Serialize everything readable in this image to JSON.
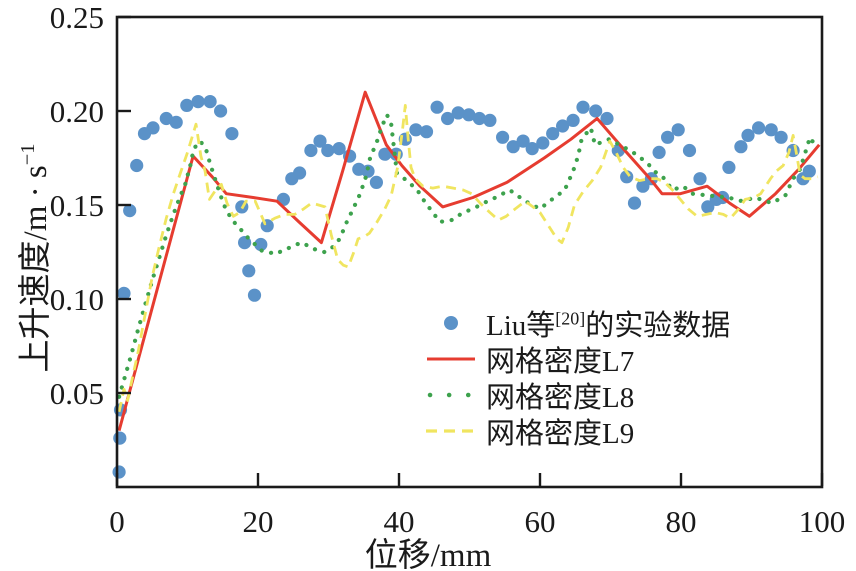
{
  "figure": {
    "xlabel": "位移/mm",
    "ylabel_base": "上升速度/m · s",
    "ylabel_sup": "−1"
  },
  "legend": {
    "item1": {
      "pre": "Liu等",
      "sup": "[20]",
      "post": "的实验数据"
    },
    "item2": "网格密度L7",
    "item3": "网格密度L8",
    "item4": "网格密度L9"
  },
  "colors": {
    "experimental": "#5b92c8",
    "l7": "#e63c30",
    "l8": "#3da24d",
    "l9": "#f0e560",
    "axis": "#1a1a1a"
  },
  "chart_data": {
    "type": "line",
    "title": "",
    "xlabel": "位移/mm",
    "ylabel": "上升速度/m·s⁻¹",
    "xlim": [
      0,
      100
    ],
    "ylim": [
      0,
      0.25
    ],
    "x_ticks": [
      0,
      20,
      40,
      60,
      80,
      100
    ],
    "y_ticks": [
      {
        "value": 0.05,
        "label": "0.05"
      },
      {
        "value": 0.1,
        "label": "0.10"
      },
      {
        "value": 0.15,
        "label": "0.15"
      },
      {
        "value": 0.2,
        "label": "0.20"
      },
      {
        "value": 0.25,
        "label": "0.25"
      }
    ],
    "grid": false,
    "legend_position": "inside-lower-right",
    "series": [
      {
        "name": "Liu等[20]的实验数据",
        "kind": "scatter",
        "color": "#5b92c8",
        "marker_radius": 6.6,
        "points": [
          [
            0.3,
            0.008
          ],
          [
            0.4,
            0.026
          ],
          [
            0.5,
            0.041
          ],
          [
            1.0,
            0.103
          ],
          [
            1.8,
            0.147
          ],
          [
            2.8,
            0.171
          ],
          [
            3.9,
            0.188
          ],
          [
            5.1,
            0.191
          ],
          [
            7.0,
            0.196
          ],
          [
            8.4,
            0.194
          ],
          [
            9.9,
            0.203
          ],
          [
            11.5,
            0.205
          ],
          [
            13.2,
            0.205
          ],
          [
            14.7,
            0.2
          ],
          [
            16.3,
            0.188
          ],
          [
            17.7,
            0.149
          ],
          [
            18.1,
            0.13
          ],
          [
            18.7,
            0.115
          ],
          [
            19.5,
            0.102
          ],
          [
            20.4,
            0.129
          ],
          [
            21.3,
            0.139
          ],
          [
            23.6,
            0.153
          ],
          [
            24.8,
            0.164
          ],
          [
            25.9,
            0.167
          ],
          [
            27.5,
            0.179
          ],
          [
            28.8,
            0.184
          ],
          [
            29.9,
            0.179
          ],
          [
            31.5,
            0.18
          ],
          [
            33.0,
            0.176
          ],
          [
            34.3,
            0.169
          ],
          [
            35.6,
            0.168
          ],
          [
            36.8,
            0.162
          ],
          [
            38.0,
            0.177
          ],
          [
            39.6,
            0.177
          ],
          [
            40.9,
            0.185
          ],
          [
            42.4,
            0.19
          ],
          [
            43.9,
            0.189
          ],
          [
            45.4,
            0.202
          ],
          [
            46.9,
            0.196
          ],
          [
            48.4,
            0.199
          ],
          [
            49.9,
            0.198
          ],
          [
            51.4,
            0.196
          ],
          [
            52.9,
            0.195
          ],
          [
            54.7,
            0.186
          ],
          [
            56.2,
            0.181
          ],
          [
            57.6,
            0.184
          ],
          [
            58.9,
            0.18
          ],
          [
            60.4,
            0.183
          ],
          [
            61.8,
            0.188
          ],
          [
            63.2,
            0.192
          ],
          [
            64.7,
            0.195
          ],
          [
            66.1,
            0.202
          ],
          [
            67.9,
            0.2
          ],
          [
            69.5,
            0.196
          ],
          [
            71.1,
            0.179
          ],
          [
            72.3,
            0.165
          ],
          [
            73.4,
            0.151
          ],
          [
            74.6,
            0.16
          ],
          [
            75.8,
            0.164
          ],
          [
            76.9,
            0.178
          ],
          [
            78.1,
            0.186
          ],
          [
            79.6,
            0.19
          ],
          [
            81.2,
            0.179
          ],
          [
            82.7,
            0.164
          ],
          [
            83.8,
            0.149
          ],
          [
            85.0,
            0.153
          ],
          [
            85.9,
            0.154
          ],
          [
            86.8,
            0.17
          ],
          [
            88.5,
            0.181
          ],
          [
            89.5,
            0.187
          ],
          [
            91.0,
            0.191
          ],
          [
            92.8,
            0.19
          ],
          [
            94.2,
            0.186
          ],
          [
            95.9,
            0.179
          ],
          [
            97.3,
            0.164
          ],
          [
            98.2,
            0.168
          ]
        ]
      },
      {
        "name": "网格密度L7",
        "kind": "line",
        "style": "solid",
        "color": "#e63c30",
        "width": 3,
        "points": [
          [
            0.3,
            0.03
          ],
          [
            10.8,
            0.176
          ],
          [
            13.5,
            0.165
          ],
          [
            15.5,
            0.156
          ],
          [
            19.3,
            0.154
          ],
          [
            22.7,
            0.152
          ],
          [
            25.8,
            0.141
          ],
          [
            29.0,
            0.13
          ],
          [
            32.0,
            0.168
          ],
          [
            35.2,
            0.21
          ],
          [
            38.2,
            0.182
          ],
          [
            40.4,
            0.171
          ],
          [
            43.0,
            0.16
          ],
          [
            46.2,
            0.149
          ],
          [
            50.5,
            0.154
          ],
          [
            55.3,
            0.162
          ],
          [
            60.6,
            0.175
          ],
          [
            64.4,
            0.185
          ],
          [
            68.1,
            0.196
          ],
          [
            71.8,
            0.18
          ],
          [
            75.6,
            0.164
          ],
          [
            77.3,
            0.156
          ],
          [
            79.9,
            0.156
          ],
          [
            83.7,
            0.16
          ],
          [
            86.9,
            0.151
          ],
          [
            89.7,
            0.144
          ],
          [
            93.4,
            0.156
          ],
          [
            96.7,
            0.169
          ],
          [
            99.6,
            0.182
          ]
        ]
      },
      {
        "name": "网格密度L8",
        "kind": "line",
        "style": "dotted",
        "color": "#3da24d",
        "width": 4.2,
        "points": [
          [
            0.3,
            0.048
          ],
          [
            2.0,
            0.07
          ],
          [
            3.0,
            0.084
          ],
          [
            4.0,
            0.097
          ],
          [
            5.0,
            0.11
          ],
          [
            6.0,
            0.122
          ],
          [
            7.0,
            0.134
          ],
          [
            8.0,
            0.145
          ],
          [
            9.0,
            0.155
          ],
          [
            9.6,
            0.16
          ],
          [
            10.4,
            0.171
          ],
          [
            10.9,
            0.18
          ],
          [
            11.8,
            0.184
          ],
          [
            12.6,
            0.18
          ],
          [
            13.2,
            0.172
          ],
          [
            13.9,
            0.164
          ],
          [
            14.6,
            0.156
          ],
          [
            15.4,
            0.148
          ],
          [
            16.2,
            0.143
          ],
          [
            17.0,
            0.139
          ],
          [
            17.8,
            0.136
          ],
          [
            18.7,
            0.132
          ],
          [
            19.6,
            0.129
          ],
          [
            20.3,
            0.126
          ],
          [
            21.2,
            0.125
          ],
          [
            22.7,
            0.124
          ],
          [
            23.5,
            0.126
          ],
          [
            24.3,
            0.127
          ],
          [
            25.4,
            0.129
          ],
          [
            26.4,
            0.13
          ],
          [
            27.5,
            0.127
          ],
          [
            28.5,
            0.126
          ],
          [
            29.4,
            0.125
          ],
          [
            30.2,
            0.126
          ],
          [
            31.6,
            0.132
          ],
          [
            32.6,
            0.141
          ],
          [
            33.5,
            0.148
          ],
          [
            34.5,
            0.156
          ],
          [
            35.3,
            0.165
          ],
          [
            35.9,
            0.175
          ],
          [
            36.9,
            0.184
          ],
          [
            37.6,
            0.192
          ],
          [
            38.3,
            0.198
          ],
          [
            38.9,
            0.193
          ],
          [
            39.7,
            0.167
          ],
          [
            41.1,
            0.163
          ],
          [
            42.6,
            0.158
          ],
          [
            43.6,
            0.152
          ],
          [
            44.4,
            0.148
          ],
          [
            45.8,
            0.141
          ],
          [
            47.5,
            0.142
          ],
          [
            49.1,
            0.146
          ],
          [
            50.5,
            0.148
          ],
          [
            52.0,
            0.151
          ],
          [
            53.7,
            0.154
          ],
          [
            55.7,
            0.158
          ],
          [
            57.9,
            0.152
          ],
          [
            60.0,
            0.148
          ],
          [
            61.7,
            0.153
          ],
          [
            63.5,
            0.158
          ],
          [
            64.7,
            0.168
          ],
          [
            65.4,
            0.176
          ],
          [
            65.9,
            0.185
          ],
          [
            67.2,
            0.191
          ],
          [
            67.8,
            0.182
          ],
          [
            69.8,
            0.185
          ],
          [
            71.8,
            0.181
          ],
          [
            73.6,
            0.177
          ],
          [
            75.3,
            0.172
          ],
          [
            76.2,
            0.168
          ],
          [
            77.4,
            0.165
          ],
          [
            78.8,
            0.158
          ],
          [
            80.3,
            0.16
          ],
          [
            81.6,
            0.156
          ],
          [
            84.0,
            0.155
          ],
          [
            86.7,
            0.154
          ],
          [
            88.7,
            0.152
          ],
          [
            90.5,
            0.154
          ],
          [
            92.9,
            0.151
          ],
          [
            94.8,
            0.155
          ],
          [
            95.9,
            0.164
          ],
          [
            96.9,
            0.169
          ],
          [
            98.3,
            0.186
          ],
          [
            99.3,
            0.18
          ]
        ]
      },
      {
        "name": "网格密度L9",
        "kind": "line",
        "style": "dashed",
        "color": "#f0e560",
        "width": 2.8,
        "points": [
          [
            0.3,
            0.04
          ],
          [
            1.0,
            0.052
          ],
          [
            1.5,
            0.046
          ],
          [
            2.3,
            0.06
          ],
          [
            3.0,
            0.072
          ],
          [
            4.0,
            0.092
          ],
          [
            5.0,
            0.112
          ],
          [
            6.0,
            0.128
          ],
          [
            7.0,
            0.143
          ],
          [
            8.0,
            0.156
          ],
          [
            9.0,
            0.167
          ],
          [
            10.0,
            0.178
          ],
          [
            11.2,
            0.193
          ],
          [
            11.9,
            0.176
          ],
          [
            12.5,
            0.168
          ],
          [
            13.1,
            0.153
          ],
          [
            14.0,
            0.158
          ],
          [
            14.8,
            0.161
          ],
          [
            15.6,
            0.151
          ],
          [
            16.5,
            0.144
          ],
          [
            17.4,
            0.146
          ],
          [
            18.3,
            0.152
          ],
          [
            19.6,
            0.152
          ],
          [
            21.0,
            0.14
          ],
          [
            22.4,
            0.143
          ],
          [
            23.8,
            0.145
          ],
          [
            25.2,
            0.145
          ],
          [
            26.5,
            0.148
          ],
          [
            27.6,
            0.151
          ],
          [
            28.6,
            0.15
          ],
          [
            29.5,
            0.149
          ],
          [
            30.4,
            0.134
          ],
          [
            31.3,
            0.121
          ],
          [
            32.1,
            0.118
          ],
          [
            32.8,
            0.117
          ],
          [
            33.6,
            0.125
          ],
          [
            34.2,
            0.132
          ],
          [
            35.0,
            0.133
          ],
          [
            35.8,
            0.135
          ],
          [
            36.9,
            0.141
          ],
          [
            38.0,
            0.148
          ],
          [
            38.9,
            0.155
          ],
          [
            39.8,
            0.17
          ],
          [
            40.5,
            0.19
          ],
          [
            40.9,
            0.203
          ],
          [
            41.3,
            0.185
          ],
          [
            41.7,
            0.17
          ],
          [
            42.3,
            0.164
          ],
          [
            43.4,
            0.16
          ],
          [
            44.8,
            0.159
          ],
          [
            46.2,
            0.16
          ],
          [
            47.7,
            0.159
          ],
          [
            49.1,
            0.158
          ],
          [
            50.3,
            0.156
          ],
          [
            51.5,
            0.151
          ],
          [
            52.9,
            0.146
          ],
          [
            54.1,
            0.142
          ],
          [
            55.2,
            0.144
          ],
          [
            56.5,
            0.148
          ],
          [
            57.9,
            0.152
          ],
          [
            59.0,
            0.149
          ],
          [
            60.0,
            0.146
          ],
          [
            61.2,
            0.139
          ],
          [
            62.4,
            0.132
          ],
          [
            63.1,
            0.13
          ],
          [
            64.0,
            0.138
          ],
          [
            64.9,
            0.15
          ],
          [
            66.1,
            0.157
          ],
          [
            67.4,
            0.163
          ],
          [
            68.6,
            0.17
          ],
          [
            69.9,
            0.184
          ],
          [
            70.8,
            0.178
          ],
          [
            71.8,
            0.17
          ],
          [
            72.8,
            0.165
          ],
          [
            74.1,
            0.163
          ],
          [
            75.5,
            0.164
          ],
          [
            76.6,
            0.164
          ],
          [
            77.7,
            0.162
          ],
          [
            78.8,
            0.158
          ],
          [
            79.9,
            0.153
          ],
          [
            81.0,
            0.148
          ],
          [
            82.3,
            0.144
          ],
          [
            83.6,
            0.145
          ],
          [
            84.8,
            0.146
          ],
          [
            86.0,
            0.145
          ],
          [
            87.0,
            0.143
          ],
          [
            88.2,
            0.148
          ],
          [
            89.1,
            0.153
          ],
          [
            90.4,
            0.154
          ],
          [
            91.3,
            0.156
          ],
          [
            92.7,
            0.164
          ],
          [
            93.5,
            0.168
          ],
          [
            94.5,
            0.171
          ],
          [
            95.3,
            0.178
          ],
          [
            95.9,
            0.187
          ],
          [
            96.4,
            0.177
          ],
          [
            96.9,
            0.166
          ],
          [
            97.6,
            0.164
          ],
          [
            98.6,
            0.164
          ],
          [
            99.4,
            0.165
          ]
        ]
      }
    ]
  }
}
